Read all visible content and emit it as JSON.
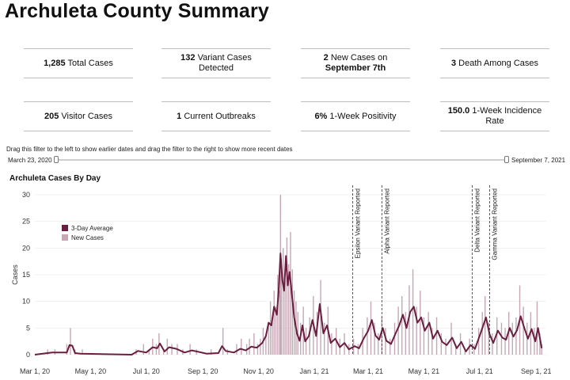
{
  "page": {
    "title": "Archuleta County Summary"
  },
  "stats": [
    {
      "value": "1,285",
      "label": "Total Cases",
      "value2": "",
      "label2": ""
    },
    {
      "value": "132",
      "label": "Variant Cases",
      "value2": "",
      "label2": "Detected"
    },
    {
      "value": "2",
      "label": "New Cases on",
      "value2": "September 7th",
      "label2": ""
    },
    {
      "value": "3",
      "label": "Death Among Cases",
      "value2": "",
      "label2": ""
    },
    {
      "value": "205",
      "label": "Visitor Cases",
      "value2": "",
      "label2": ""
    },
    {
      "value": "1",
      "label": "Current Outbreaks",
      "value2": "",
      "label2": ""
    },
    {
      "value": "6%",
      "label": "1-Week Positivity",
      "value2": "",
      "label2": ""
    },
    {
      "value": "150.0",
      "label": "1-Week Incidence",
      "value2": "",
      "label2": "Rate"
    }
  ],
  "filter": {
    "instructions": "Drag this filter to the left to show earlier dates and drag the filter to the right to show more recent dates",
    "start_label": "March 23, 2020",
    "end_label": "September 7, 2021"
  },
  "colors": {
    "average": "#6b1e3f",
    "new_cases": "#c8a7b4",
    "rule": "#bdbdbd",
    "grid": "#e6e6e6"
  },
  "chart_data": {
    "type": "bar",
    "title": "Archuleta Cases By Day",
    "xlabel": "",
    "ylabel": "Cases",
    "ylim": [
      0,
      30
    ],
    "yticks": [
      0,
      5,
      10,
      15,
      20,
      25,
      30
    ],
    "x_range": [
      "2020-03-01",
      "2021-09-12"
    ],
    "xticks": [
      {
        "date": "2020-03-01",
        "label": "Mar 1, 20"
      },
      {
        "date": "2020-05-01",
        "label": "May 1, 20"
      },
      {
        "date": "2020-07-01",
        "label": "Jul 1, 20"
      },
      {
        "date": "2020-09-01",
        "label": "Sep 1, 20"
      },
      {
        "date": "2020-11-01",
        "label": "Nov 1, 20"
      },
      {
        "date": "2021-01-01",
        "label": "Jan 1, 21"
      },
      {
        "date": "2021-03-01",
        "label": "Mar 1, 21"
      },
      {
        "date": "2021-05-01",
        "label": "May 1, 21"
      },
      {
        "date": "2021-07-01",
        "label": "Jul 1, 21"
      },
      {
        "date": "2021-09-01",
        "label": "Sep 1, 21"
      }
    ],
    "legend": {
      "position": "top-left",
      "entries": [
        "3-Day Average",
        "New Cases"
      ]
    },
    "annotations": [
      {
        "date": "2021-02-12",
        "label": "Epsilon Variant Reported"
      },
      {
        "date": "2021-03-16",
        "label": "Alpha Variant Reported"
      },
      {
        "date": "2021-06-23",
        "label": "Delta Variant Reported"
      },
      {
        "date": "2021-07-12",
        "label": "Gamma Variant Reported"
      }
    ],
    "series": [
      {
        "name": "New Cases",
        "kind": "bar",
        "points": [
          [
            "2020-03-15",
            1
          ],
          [
            "2020-03-23",
            1
          ],
          [
            "2020-04-05",
            2
          ],
          [
            "2020-04-09",
            5
          ],
          [
            "2020-04-14",
            1
          ],
          [
            "2020-04-22",
            1
          ],
          [
            "2020-06-20",
            1
          ],
          [
            "2020-06-28",
            2
          ],
          [
            "2020-07-04",
            1
          ],
          [
            "2020-07-08",
            3
          ],
          [
            "2020-07-12",
            2
          ],
          [
            "2020-07-15",
            4
          ],
          [
            "2020-07-20",
            1
          ],
          [
            "2020-07-24",
            3
          ],
          [
            "2020-07-29",
            2
          ],
          [
            "2020-08-04",
            2
          ],
          [
            "2020-08-10",
            1
          ],
          [
            "2020-08-18",
            2
          ],
          [
            "2020-08-25",
            1
          ],
          [
            "2020-09-10",
            1
          ],
          [
            "2020-09-23",
            5
          ],
          [
            "2020-09-28",
            1
          ],
          [
            "2020-10-08",
            2
          ],
          [
            "2020-10-13",
            3
          ],
          [
            "2020-10-19",
            2
          ],
          [
            "2020-10-22",
            3
          ],
          [
            "2020-10-27",
            4
          ],
          [
            "2020-10-31",
            2
          ],
          [
            "2020-11-03",
            3
          ],
          [
            "2020-11-06",
            5
          ],
          [
            "2020-11-09",
            4
          ],
          [
            "2020-11-12",
            6
          ],
          [
            "2020-11-14",
            10
          ],
          [
            "2020-11-16",
            7
          ],
          [
            "2020-11-18",
            12
          ],
          [
            "2020-11-20",
            9
          ],
          [
            "2020-11-22",
            15
          ],
          [
            "2020-11-24",
            12
          ],
          [
            "2020-11-25",
            30
          ],
          [
            "2020-11-26",
            18
          ],
          [
            "2020-11-28",
            20
          ],
          [
            "2020-11-30",
            14
          ],
          [
            "2020-12-02",
            22
          ],
          [
            "2020-12-04",
            17
          ],
          [
            "2020-12-06",
            23
          ],
          [
            "2020-12-08",
            16
          ],
          [
            "2020-12-10",
            12
          ],
          [
            "2020-12-12",
            10
          ],
          [
            "2020-12-14",
            8
          ],
          [
            "2020-12-17",
            6
          ],
          [
            "2020-12-20",
            9
          ],
          [
            "2020-12-23",
            5
          ],
          [
            "2020-12-27",
            7
          ],
          [
            "2020-12-31",
            11
          ],
          [
            "2021-01-04",
            8
          ],
          [
            "2021-01-08",
            14
          ],
          [
            "2021-01-12",
            6
          ],
          [
            "2021-01-16",
            9
          ],
          [
            "2021-01-20",
            4
          ],
          [
            "2021-01-25",
            5
          ],
          [
            "2021-01-29",
            3
          ],
          [
            "2021-02-03",
            4
          ],
          [
            "2021-02-08",
            2
          ],
          [
            "2021-02-13",
            3
          ],
          [
            "2021-02-18",
            2
          ],
          [
            "2021-02-23",
            5
          ],
          [
            "2021-02-28",
            7
          ],
          [
            "2021-03-04",
            10
          ],
          [
            "2021-03-08",
            6
          ],
          [
            "2021-03-12",
            4
          ],
          [
            "2021-03-16",
            7
          ],
          [
            "2021-03-20",
            5
          ],
          [
            "2021-03-25",
            3
          ],
          [
            "2021-03-30",
            6
          ],
          [
            "2021-04-03",
            9
          ],
          [
            "2021-04-07",
            11
          ],
          [
            "2021-04-11",
            8
          ],
          [
            "2021-04-15",
            13
          ],
          [
            "2021-04-19",
            16
          ],
          [
            "2021-04-23",
            9
          ],
          [
            "2021-04-27",
            12
          ],
          [
            "2021-05-01",
            7
          ],
          [
            "2021-05-06",
            8
          ],
          [
            "2021-05-10",
            5
          ],
          [
            "2021-05-15",
            7
          ],
          [
            "2021-05-20",
            4
          ],
          [
            "2021-05-25",
            3
          ],
          [
            "2021-05-31",
            6
          ],
          [
            "2021-06-05",
            2
          ],
          [
            "2021-06-10",
            4
          ],
          [
            "2021-06-15",
            1
          ],
          [
            "2021-06-20",
            3
          ],
          [
            "2021-06-25",
            2
          ],
          [
            "2021-06-30",
            5
          ],
          [
            "2021-07-04",
            8
          ],
          [
            "2021-07-07",
            11
          ],
          [
            "2021-07-11",
            6
          ],
          [
            "2021-07-15",
            4
          ],
          [
            "2021-07-20",
            7
          ],
          [
            "2021-07-25",
            6
          ],
          [
            "2021-07-29",
            5
          ],
          [
            "2021-08-02",
            8
          ],
          [
            "2021-08-06",
            6
          ],
          [
            "2021-08-10",
            7
          ],
          [
            "2021-08-14",
            13
          ],
          [
            "2021-08-18",
            9
          ],
          [
            "2021-08-22",
            6
          ],
          [
            "2021-08-26",
            8
          ],
          [
            "2021-08-30",
            5
          ],
          [
            "2021-09-02",
            10
          ],
          [
            "2021-09-05",
            4
          ],
          [
            "2021-09-07",
            2
          ]
        ]
      },
      {
        "name": "3-Day Average",
        "kind": "line",
        "points": [
          [
            "2020-03-01",
            0
          ],
          [
            "2020-03-20",
            0.4
          ],
          [
            "2020-04-05",
            0.4
          ],
          [
            "2020-04-08",
            1.8
          ],
          [
            "2020-04-11",
            1.7
          ],
          [
            "2020-04-14",
            0.3
          ],
          [
            "2020-04-20",
            0.2
          ],
          [
            "2020-06-15",
            0
          ],
          [
            "2020-06-22",
            0.7
          ],
          [
            "2020-07-01",
            0.4
          ],
          [
            "2020-07-08",
            1.4
          ],
          [
            "2020-07-13",
            1.2
          ],
          [
            "2020-07-16",
            2.1
          ],
          [
            "2020-07-21",
            0.6
          ],
          [
            "2020-07-26",
            1.4
          ],
          [
            "2020-08-03",
            1.1
          ],
          [
            "2020-08-12",
            0.4
          ],
          [
            "2020-08-20",
            0.8
          ],
          [
            "2020-09-05",
            0.2
          ],
          [
            "2020-09-18",
            0.3
          ],
          [
            "2020-09-22",
            1.6
          ],
          [
            "2020-09-26",
            0.7
          ],
          [
            "2020-10-05",
            0.4
          ],
          [
            "2020-10-12",
            1.1
          ],
          [
            "2020-10-18",
            0.8
          ],
          [
            "2020-10-24",
            1.5
          ],
          [
            "2020-10-30",
            1.3
          ],
          [
            "2020-11-05",
            2.2
          ],
          [
            "2020-11-09",
            3.5
          ],
          [
            "2020-11-12",
            6
          ],
          [
            "2020-11-15",
            5.5
          ],
          [
            "2020-11-18",
            9
          ],
          [
            "2020-11-21",
            7.5
          ],
          [
            "2020-11-23",
            12
          ],
          [
            "2020-11-25",
            19
          ],
          [
            "2020-11-27",
            14
          ],
          [
            "2020-11-29",
            12
          ],
          [
            "2020-12-01",
            18.5
          ],
          [
            "2020-12-03",
            13
          ],
          [
            "2020-12-05",
            15.5
          ],
          [
            "2020-12-07",
            12
          ],
          [
            "2020-12-10",
            7
          ],
          [
            "2020-12-13",
            4
          ],
          [
            "2020-12-16",
            2.6
          ],
          [
            "2020-12-19",
            5.5
          ],
          [
            "2020-12-22",
            2.5
          ],
          [
            "2020-12-26",
            3.5
          ],
          [
            "2020-12-30",
            6.5
          ],
          [
            "2021-01-03",
            3.5
          ],
          [
            "2021-01-07",
            9.5
          ],
          [
            "2021-01-11",
            4
          ],
          [
            "2021-01-15",
            5.5
          ],
          [
            "2021-01-19",
            2.2
          ],
          [
            "2021-01-24",
            3
          ],
          [
            "2021-01-29",
            1.4
          ],
          [
            "2021-02-03",
            2.2
          ],
          [
            "2021-02-08",
            1
          ],
          [
            "2021-02-14",
            1.6
          ],
          [
            "2021-02-19",
            1.2
          ],
          [
            "2021-02-24",
            3
          ],
          [
            "2021-03-01",
            4.5
          ],
          [
            "2021-03-05",
            6.5
          ],
          [
            "2021-03-09",
            3.6
          ],
          [
            "2021-03-13",
            2.8
          ],
          [
            "2021-03-17",
            5
          ],
          [
            "2021-03-21",
            2.6
          ],
          [
            "2021-03-26",
            2
          ],
          [
            "2021-03-31",
            4
          ],
          [
            "2021-04-04",
            5.5
          ],
          [
            "2021-04-08",
            7.5
          ],
          [
            "2021-04-12",
            5
          ],
          [
            "2021-04-16",
            8
          ],
          [
            "2021-04-20",
            9
          ],
          [
            "2021-04-24",
            6
          ],
          [
            "2021-04-28",
            7
          ],
          [
            "2021-05-02",
            4.5
          ],
          [
            "2021-05-07",
            6
          ],
          [
            "2021-05-11",
            3
          ],
          [
            "2021-05-16",
            4.5
          ],
          [
            "2021-05-21",
            2.4
          ],
          [
            "2021-05-26",
            1.8
          ],
          [
            "2021-06-01",
            3.2
          ],
          [
            "2021-06-06",
            1.2
          ],
          [
            "2021-06-11",
            2.4
          ],
          [
            "2021-06-16",
            0.6
          ],
          [
            "2021-06-21",
            1.8
          ],
          [
            "2021-06-26",
            1.1
          ],
          [
            "2021-07-01",
            3.5
          ],
          [
            "2021-07-05",
            5.5
          ],
          [
            "2021-07-08",
            7
          ],
          [
            "2021-07-12",
            3.8
          ],
          [
            "2021-07-16",
            2.2
          ],
          [
            "2021-07-21",
            4.5
          ],
          [
            "2021-07-26",
            3.2
          ],
          [
            "2021-07-30",
            2.8
          ],
          [
            "2021-08-03",
            5
          ],
          [
            "2021-08-07",
            3.4
          ],
          [
            "2021-08-11",
            4.6
          ],
          [
            "2021-08-15",
            7.2
          ],
          [
            "2021-08-19",
            5
          ],
          [
            "2021-08-23",
            3
          ],
          [
            "2021-08-27",
            4.8
          ],
          [
            "2021-08-31",
            2.5
          ],
          [
            "2021-09-03",
            5
          ],
          [
            "2021-09-06",
            2.2
          ],
          [
            "2021-09-07",
            1.2
          ]
        ]
      }
    ]
  }
}
